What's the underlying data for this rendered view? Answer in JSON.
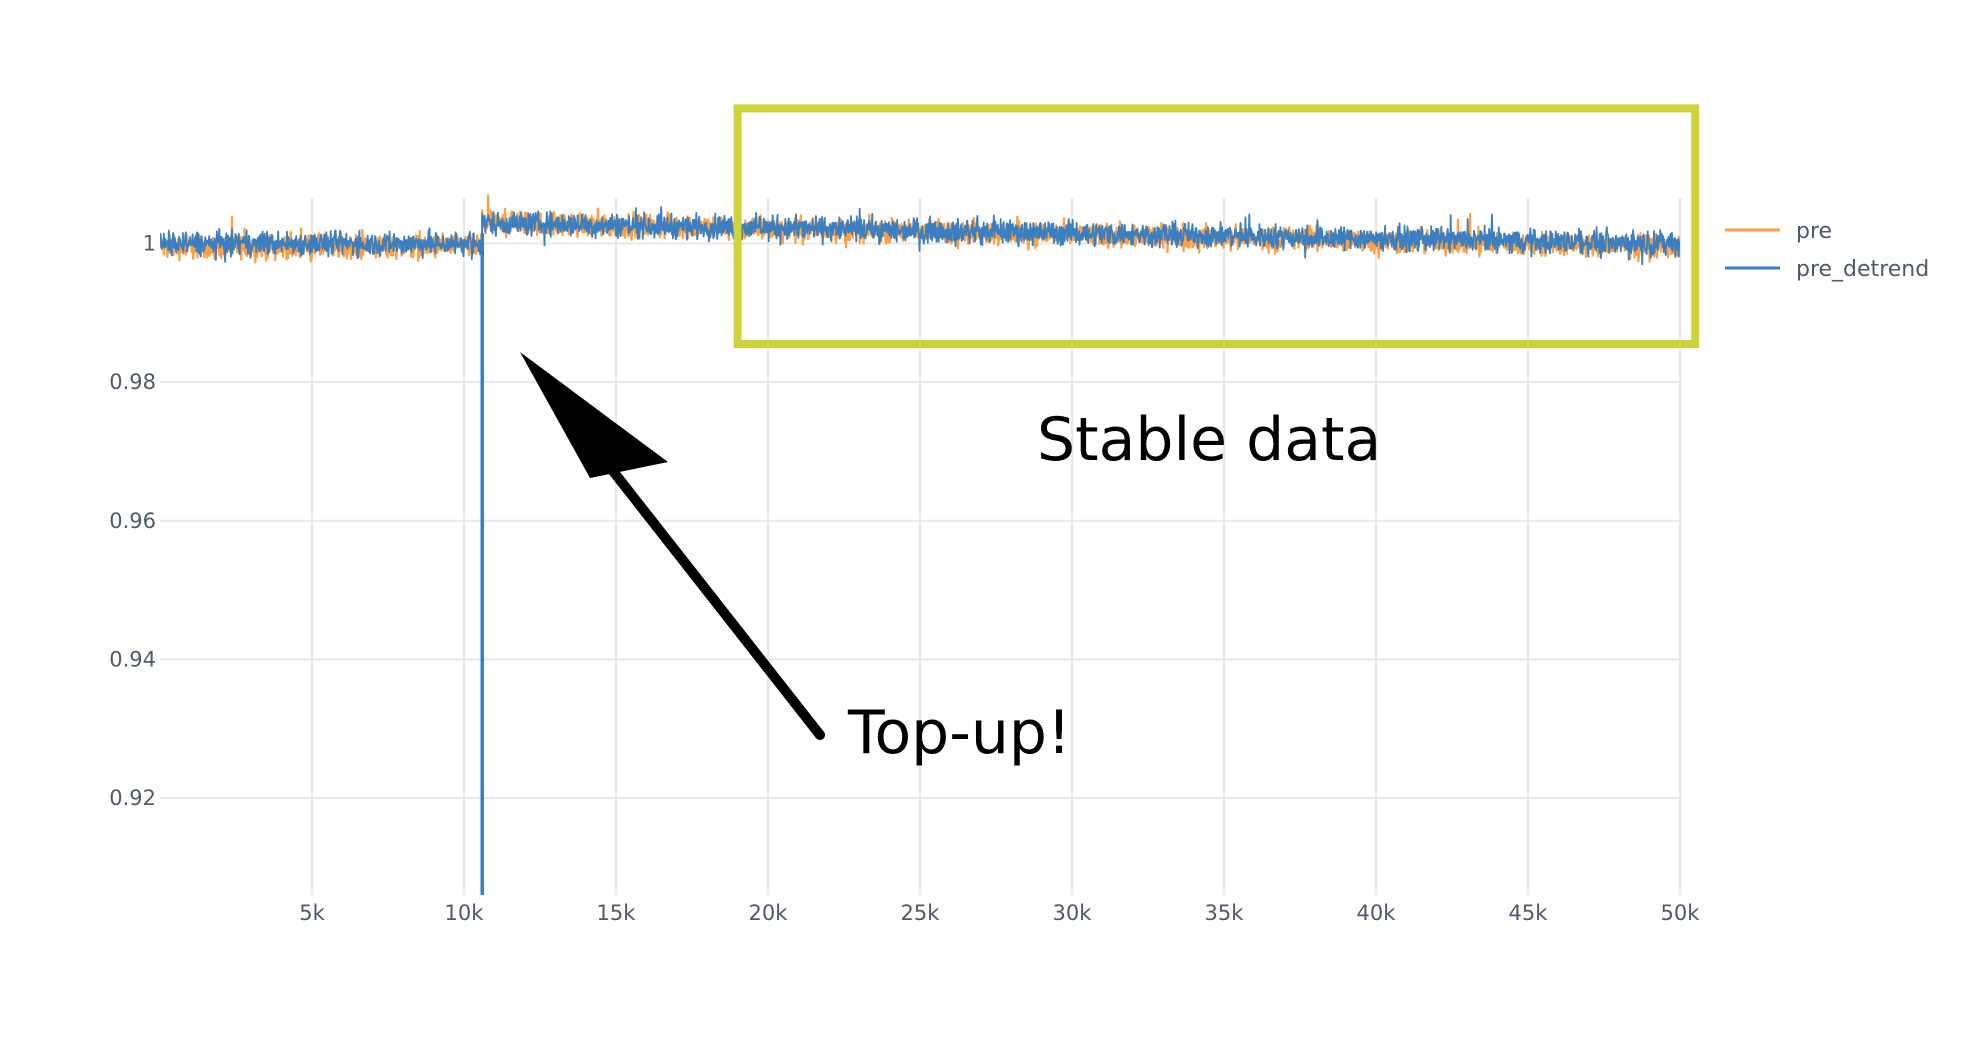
{
  "chart_data": {
    "type": "line",
    "title": "",
    "xlabel": "",
    "ylabel": "",
    "xlim": [
      0,
      50000
    ],
    "ylim": [
      0.906,
      1.0135
    ],
    "grid": true,
    "x_ticks": [
      {
        "value": 5000,
        "label": "5k"
      },
      {
        "value": 10000,
        "label": "10k"
      },
      {
        "value": 15000,
        "label": "15k"
      },
      {
        "value": 20000,
        "label": "20k"
      },
      {
        "value": 25000,
        "label": "25k"
      },
      {
        "value": 30000,
        "label": "30k"
      },
      {
        "value": 35000,
        "label": "35k"
      },
      {
        "value": 40000,
        "label": "40k"
      },
      {
        "value": 45000,
        "label": "45k"
      },
      {
        "value": 50000,
        "label": "50k"
      }
    ],
    "y_ticks": [
      {
        "value": 0.92,
        "label": "0.92"
      },
      {
        "value": 0.94,
        "label": "0.94"
      },
      {
        "value": 0.96,
        "label": "0.96"
      },
      {
        "value": 0.98,
        "label": "0.98"
      },
      {
        "value": 1.0,
        "label": "1"
      }
    ],
    "legend_position": "right",
    "series": [
      {
        "name": "pre",
        "color": "#ff9f40",
        "segments": [
          {
            "x_start": 0,
            "x_end": 10600,
            "center_start": 0.9995,
            "center_end": 0.9995,
            "noise_amplitude": 0.0025
          },
          {
            "x_start": 10600,
            "x_end": 50000,
            "center_start": 1.003,
            "center_end": 0.9995,
            "noise_amplitude": 0.0025
          }
        ]
      },
      {
        "name": "pre_detrend",
        "color": "#3a7fc1",
        "segments": [
          {
            "x_start": 0,
            "x_end": 10600,
            "center_start": 1.0,
            "center_end": 1.0,
            "noise_amplitude": 0.0025
          },
          {
            "x_start": 10600,
            "x_end": 50000,
            "center_start": 1.003,
            "center_end": 1.0,
            "noise_amplitude": 0.0025
          }
        ],
        "spike": {
          "x": 10600,
          "y_min": 0.906
        }
      }
    ],
    "annotations": [
      {
        "text": "Stable data",
        "kind": "box",
        "x_range": [
          19000,
          50500
        ],
        "y_range": [
          0.9855,
          1.0195
        ],
        "color": "#cdd339"
      },
      {
        "text": "Top-up!",
        "kind": "arrow",
        "points_to_x": 10600,
        "points_to_y": 0.9975,
        "color": "#000000"
      }
    ]
  }
}
